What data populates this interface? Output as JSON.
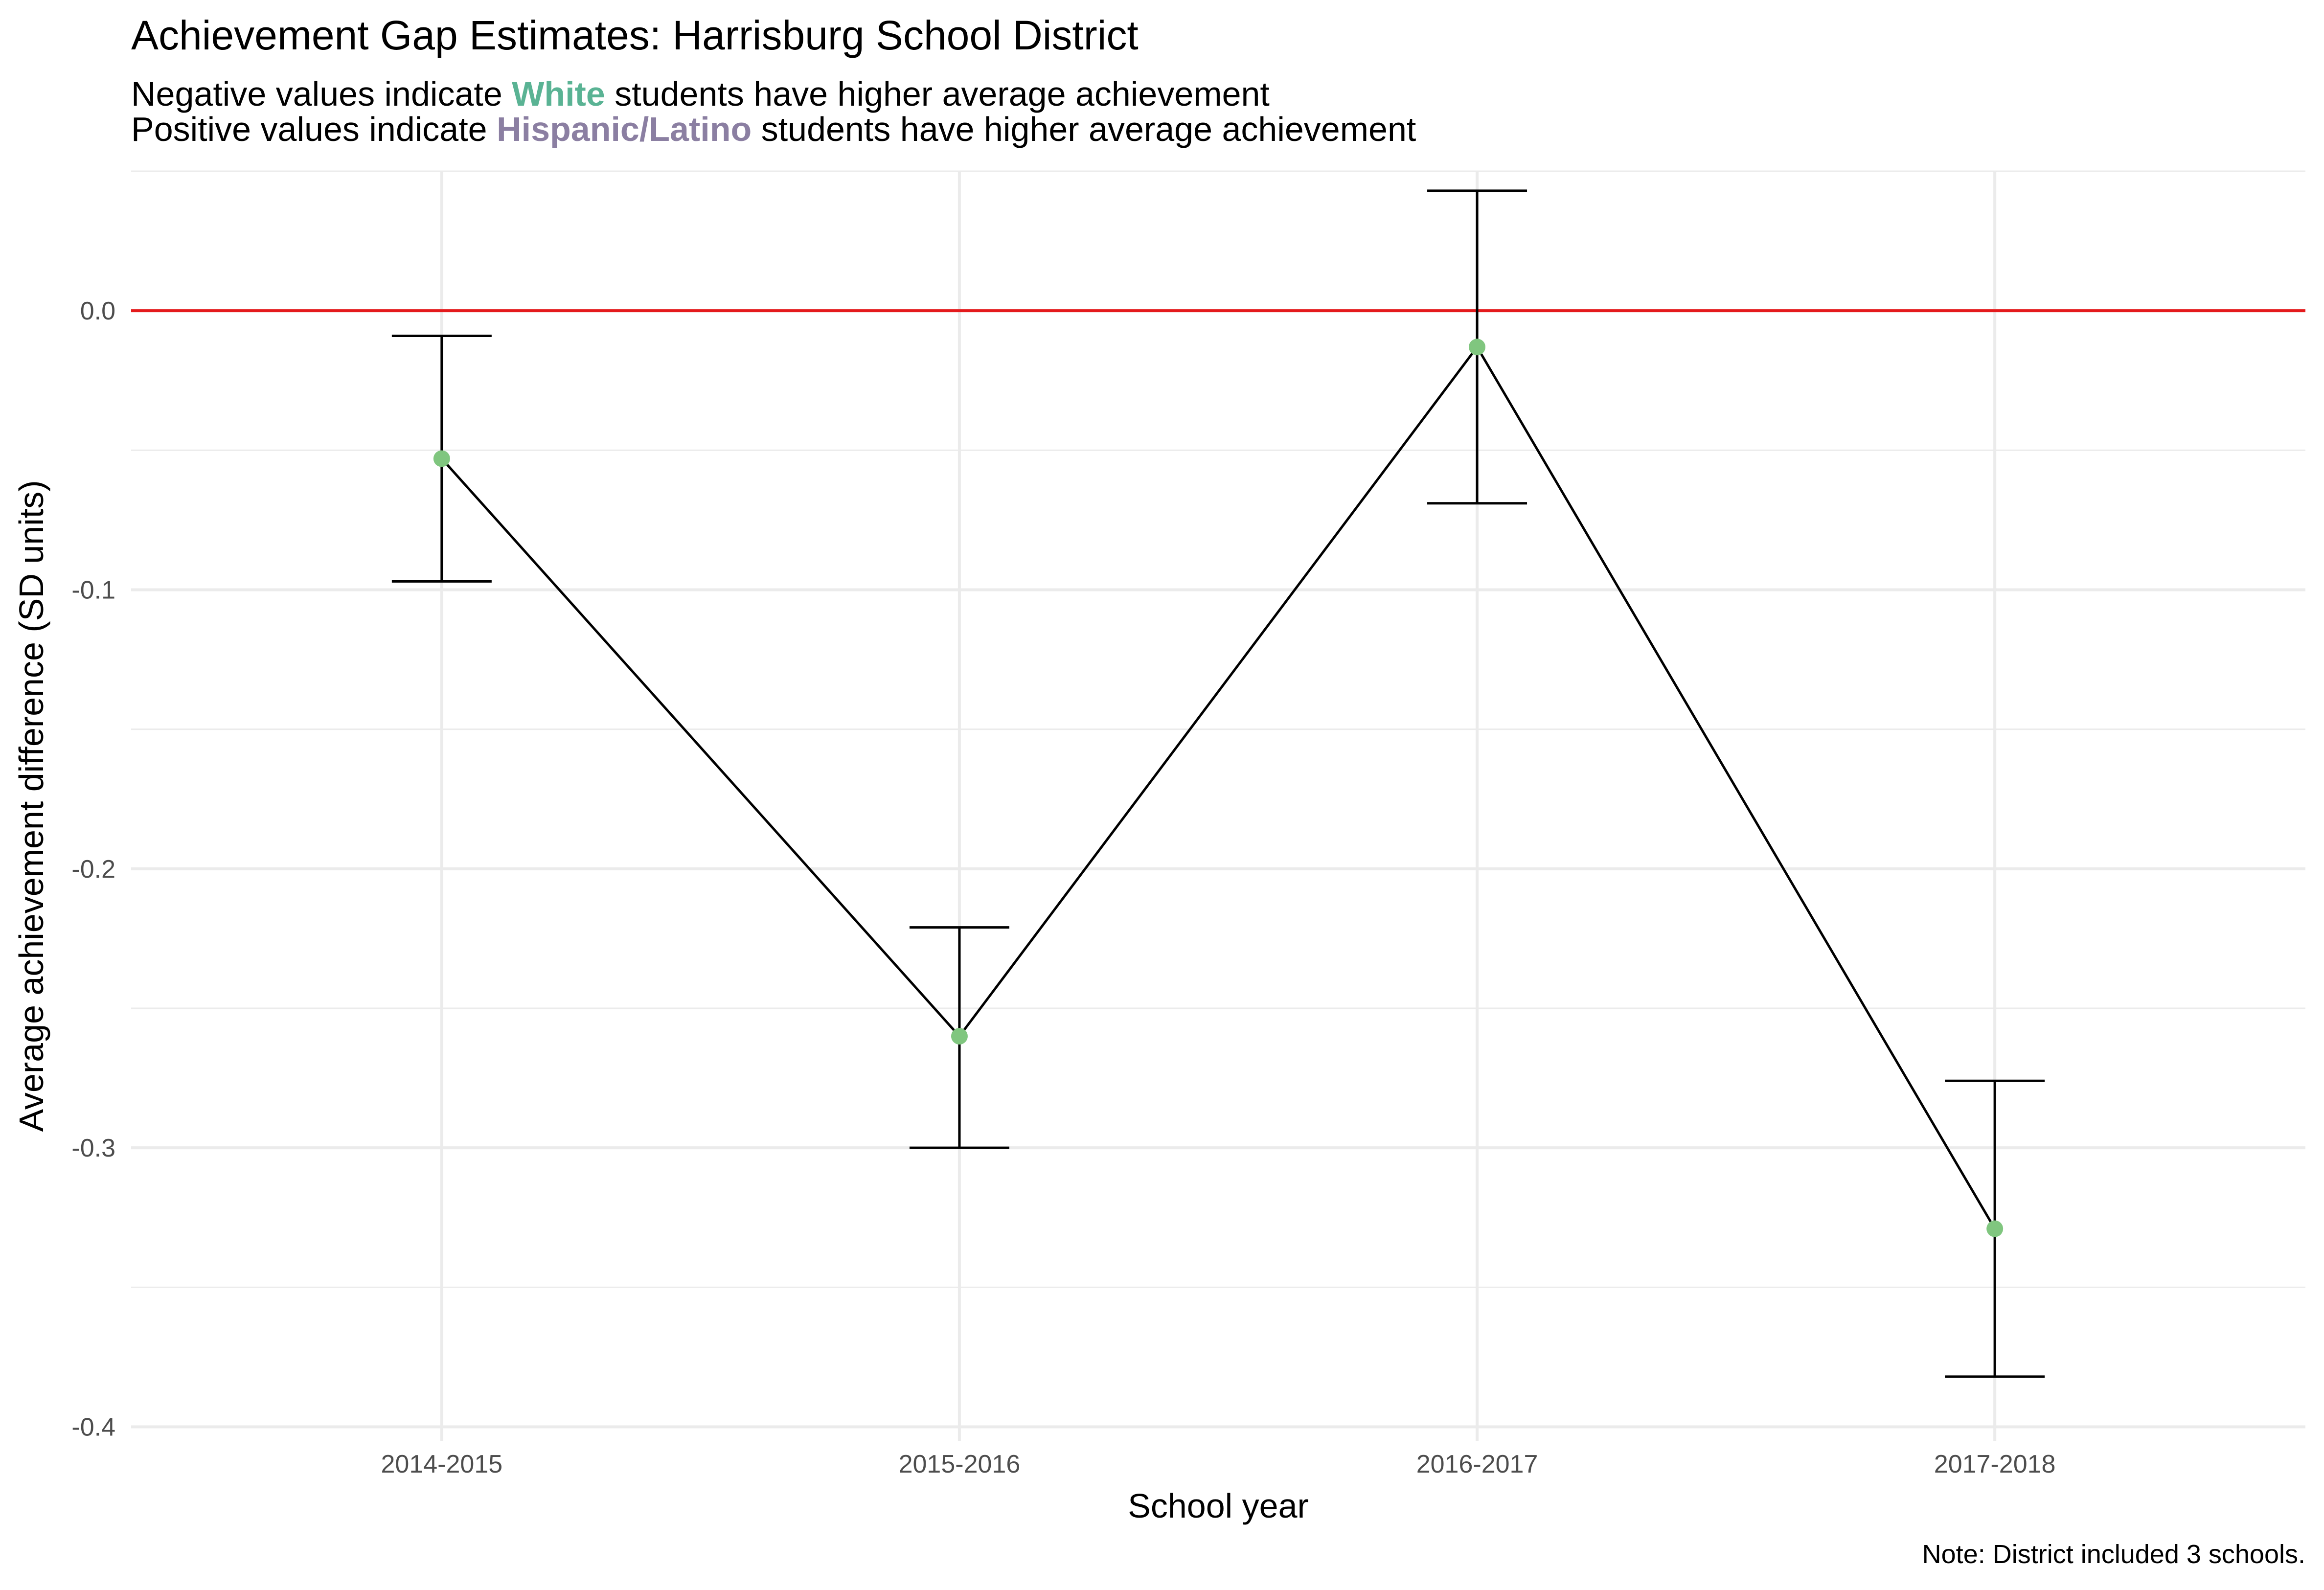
{
  "title": "Achievement Gap Estimates: Harrisburg School District",
  "subtitle": {
    "line1": {
      "before": "Negative values indicate ",
      "emph": "White",
      "after": " students have higher average achievement"
    },
    "line2": {
      "before": "Positive values indicate ",
      "emph": "Hispanic/Latino",
      "after": " students have higher average achievement"
    }
  },
  "colors": {
    "white_group": "#5AB394",
    "hispanic_group": "#8B7FA2",
    "point": "#80C67F",
    "zero_line": "#E41A1C",
    "line": "#000000",
    "grid": "#EBEBEB"
  },
  "note": "Note: District included 3 schools.",
  "chart_data": {
    "type": "line",
    "title": "Achievement Gap Estimates: Harrisburg School District",
    "xlabel": "School year",
    "ylabel": "Average achievement difference (SD units)",
    "categories": [
      "2014-2015",
      "2015-2016",
      "2016-2017",
      "2017-2018"
    ],
    "values": [
      -0.053,
      -0.26,
      -0.013,
      -0.329
    ],
    "ci_low": [
      -0.097,
      -0.3,
      -0.069,
      -0.382
    ],
    "ci_high": [
      -0.009,
      -0.221,
      0.043,
      -0.276
    ],
    "ylim": [
      -0.405,
      0.05
    ],
    "yticks": [
      0.0,
      -0.1,
      -0.2,
      -0.3,
      -0.4
    ],
    "ytick_labels": [
      "0.0",
      "-0.1",
      "-0.2",
      "-0.3",
      "-0.4"
    ],
    "reference_line": 0.0,
    "grid": true,
    "legend": "none"
  }
}
